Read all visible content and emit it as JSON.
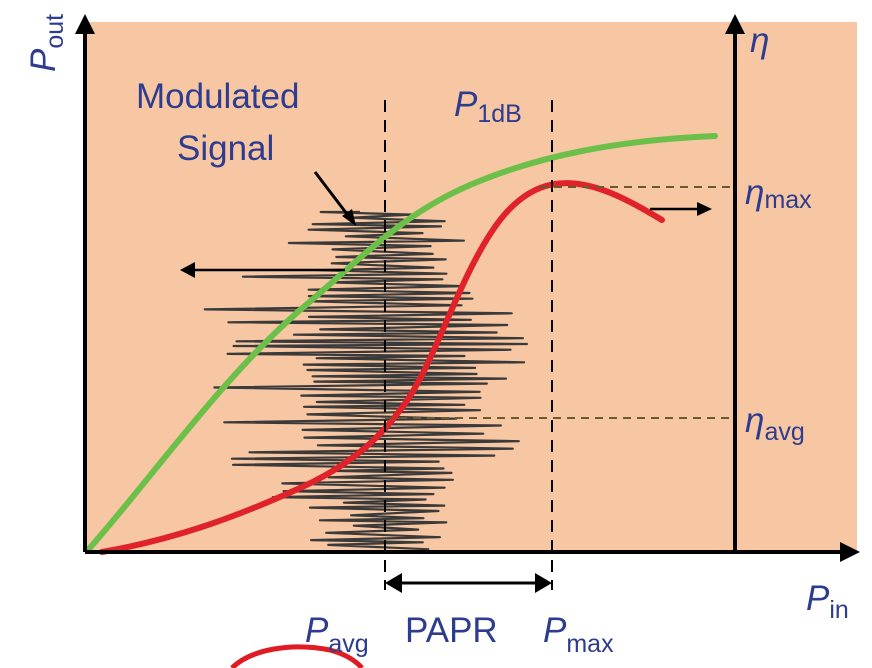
{
  "colors": {
    "background": "#f7c6a3",
    "gain_curve": "#6cc04a",
    "efficiency_curve": "#e0222b",
    "signal": "#3a3a3a",
    "axes": "#000000",
    "text": "#2e3c8f",
    "marker_circle": "#e01b24"
  },
  "labels": {
    "y_axis": {
      "main": "P",
      "sub": "out"
    },
    "eta_axis": "η",
    "x_axis": {
      "main": "P",
      "sub": "in"
    },
    "modulated_line1": "Modulated",
    "modulated_line2": "Signal",
    "p1db": {
      "main": "P",
      "sub": "1dB"
    },
    "eta_max": {
      "main": "η",
      "sub": "max"
    },
    "eta_avg": {
      "main": "η",
      "sub": "avg"
    },
    "p_avg": {
      "main": "P",
      "sub": "avg"
    },
    "papr": "PAPR",
    "p_max": {
      "main": "P",
      "sub": "max"
    }
  }
}
